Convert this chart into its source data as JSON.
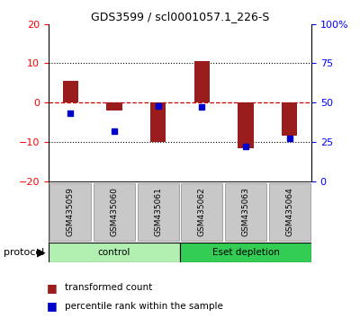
{
  "title": "GDS3599 / scl0001057.1_226-S",
  "samples": [
    "GSM435059",
    "GSM435060",
    "GSM435061",
    "GSM435062",
    "GSM435063",
    "GSM435064"
  ],
  "transformed_count": [
    5.5,
    -2.0,
    -10.0,
    10.5,
    -11.5,
    -8.5
  ],
  "percentile_rank": [
    43,
    32,
    48,
    47,
    22,
    27
  ],
  "ylim_left": [
    -20,
    20
  ],
  "ylim_right": [
    0,
    100
  ],
  "yticks_left": [
    -20,
    -10,
    0,
    10,
    20
  ],
  "yticks_right": [
    0,
    25,
    50,
    75,
    100
  ],
  "ytick_labels_right": [
    "0",
    "25",
    "50",
    "75",
    "100%"
  ],
  "bar_color": "#9b1c1c",
  "dot_color": "#0000cc",
  "zero_line_color": "#cc0000",
  "grid_color": "#000000",
  "background_color": "#ffffff",
  "plot_bg_color": "#ffffff",
  "sample_box_color": "#c8c8c8",
  "control_color": "#b2f0b2",
  "eset_color": "#33cc55",
  "legend_red_label": "transformed count",
  "legend_blue_label": "percentile rank within the sample",
  "protocol_label": "protocol",
  "bar_width": 0.35,
  "dot_size": 5
}
